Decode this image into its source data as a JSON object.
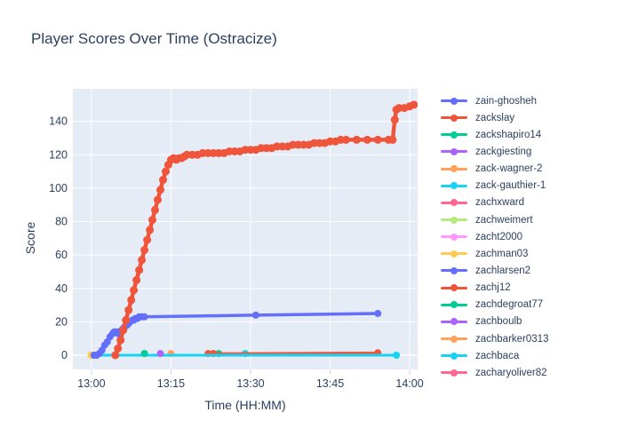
{
  "title": "Player Scores Over Time (Ostracize)",
  "chart_data": {
    "type": "line",
    "title": "Player Scores Over Time (Ostracize)",
    "xlabel": "Time (HH:MM)",
    "ylabel": "Score",
    "x_ticks": [
      {
        "label": "13:00",
        "minutes": 0
      },
      {
        "label": "13:15",
        "minutes": 15
      },
      {
        "label": "13:30",
        "minutes": 30
      },
      {
        "label": "13:45",
        "minutes": 45
      },
      {
        "label": "14:00",
        "minutes": 60
      }
    ],
    "y_ticks": [
      0,
      20,
      40,
      60,
      80,
      100,
      120,
      140
    ],
    "x_range_minutes": [
      -3.5,
      61.5
    ],
    "y_range": [
      -8.5,
      159.5
    ],
    "grid": true,
    "legend_position": "right",
    "colors": {
      "plot_bg": "#e5ecf6",
      "grid": "#ffffff",
      "text": "#2a3f5f",
      "tick_mark": "#ccd5e6"
    },
    "draw_order": [
      16,
      15,
      14,
      13,
      12,
      11,
      10,
      9,
      8,
      7,
      6,
      5,
      4,
      3,
      2,
      0,
      1
    ],
    "series": [
      {
        "name": "zain-ghosheh",
        "color": "#636efa",
        "line_width": 3.5,
        "marker_r": 4,
        "points": [
          [
            0.5,
            0
          ],
          [
            1,
            0
          ],
          [
            1.5,
            1
          ],
          [
            2,
            3
          ],
          [
            2.5,
            6
          ],
          [
            3,
            8
          ],
          [
            3.5,
            11
          ],
          [
            4,
            13
          ],
          [
            4.3,
            14
          ],
          [
            4.7,
            14
          ],
          [
            5,
            13
          ],
          [
            5.3,
            14
          ],
          [
            5.7,
            15
          ],
          [
            6,
            16
          ],
          [
            6.3,
            17
          ],
          [
            6.7,
            18
          ],
          [
            7,
            19
          ],
          [
            7.3,
            20
          ],
          [
            7.7,
            21
          ],
          [
            8,
            21
          ],
          [
            8.3,
            22
          ],
          [
            8.7,
            22
          ],
          [
            9,
            23
          ],
          [
            9.5,
            23
          ],
          [
            10,
            23
          ],
          [
            31,
            24
          ],
          [
            54,
            25
          ]
        ]
      },
      {
        "name": "zackslay",
        "color": "#ef553b",
        "line_width": 4.5,
        "marker_r": 4.5,
        "points": [
          [
            4.5,
            0
          ],
          [
            5,
            4
          ],
          [
            5.5,
            9
          ],
          [
            6,
            15
          ],
          [
            6.5,
            21
          ],
          [
            7,
            27
          ],
          [
            7.5,
            33
          ],
          [
            8,
            39
          ],
          [
            8.5,
            45
          ],
          [
            9,
            51
          ],
          [
            9.5,
            57
          ],
          [
            10,
            63
          ],
          [
            10.5,
            69
          ],
          [
            11,
            75
          ],
          [
            11.5,
            81
          ],
          [
            12,
            87
          ],
          [
            12.5,
            93
          ],
          [
            13,
            99
          ],
          [
            13.5,
            105
          ],
          [
            14,
            110
          ],
          [
            14.5,
            114
          ],
          [
            15,
            117
          ],
          [
            15.5,
            118
          ],
          [
            16,
            117
          ],
          [
            16.5,
            118
          ],
          [
            17,
            118
          ],
          [
            17.5,
            119
          ],
          [
            18,
            120
          ],
          [
            19,
            120
          ],
          [
            20,
            120
          ],
          [
            21,
            121
          ],
          [
            22,
            121
          ],
          [
            23,
            121
          ],
          [
            24,
            121
          ],
          [
            25,
            121
          ],
          [
            26,
            122
          ],
          [
            27,
            122
          ],
          [
            28,
            122
          ],
          [
            29,
            123
          ],
          [
            30,
            123
          ],
          [
            31,
            123
          ],
          [
            32,
            124
          ],
          [
            33,
            124
          ],
          [
            34,
            124
          ],
          [
            35,
            125
          ],
          [
            36,
            125
          ],
          [
            37,
            125
          ],
          [
            38,
            126
          ],
          [
            39,
            126
          ],
          [
            40,
            126
          ],
          [
            41,
            126
          ],
          [
            42,
            127
          ],
          [
            43,
            127
          ],
          [
            44,
            127
          ],
          [
            45,
            128
          ],
          [
            46,
            128
          ],
          [
            47,
            129
          ],
          [
            48,
            129
          ],
          [
            50,
            129
          ],
          [
            52,
            129
          ],
          [
            54,
            129
          ],
          [
            56,
            129
          ],
          [
            56.8,
            129
          ],
          [
            57.2,
            141
          ],
          [
            57.5,
            147
          ],
          [
            58,
            148
          ],
          [
            59,
            148
          ],
          [
            60,
            149
          ],
          [
            60.8,
            150
          ]
        ]
      },
      {
        "name": "zackshapiro14",
        "color": "#00cc96",
        "line_width": 0,
        "marker_r": 4,
        "points": [
          [
            10,
            1
          ]
        ]
      },
      {
        "name": "zackgiesting",
        "color": "#ab63fa",
        "line_width": 0,
        "marker_r": 4,
        "points": [
          [
            13,
            1
          ]
        ]
      },
      {
        "name": "zack-wagner-2",
        "color": "#ffa15a",
        "line_width": 0,
        "marker_r": 3.5,
        "points": [
          [
            1,
            0
          ]
        ]
      },
      {
        "name": "zack-gauthier-1",
        "color": "#19d3f3",
        "line_width": 3,
        "marker_r": 4,
        "points": [
          [
            0.5,
            0
          ],
          [
            57.5,
            0
          ]
        ]
      },
      {
        "name": "zachxward",
        "color": "#ff6692",
        "line_width": 0,
        "marker_r": 3.5,
        "points": [
          [
            1,
            0
          ]
        ]
      },
      {
        "name": "zachweimert",
        "color": "#b6e880",
        "line_width": 0,
        "marker_r": 3.5,
        "points": [
          [
            1,
            0
          ]
        ]
      },
      {
        "name": "zacht2000",
        "color": "#ff97ff",
        "line_width": 0,
        "marker_r": 3.5,
        "points": [
          [
            1,
            0
          ]
        ]
      },
      {
        "name": "zachman03",
        "color": "#fecb52",
        "line_width": 0,
        "marker_r": 4.5,
        "points": [
          [
            0,
            0
          ]
        ]
      },
      {
        "name": "zachlarsen2",
        "color": "#636efa",
        "line_width": 0,
        "marker_r": 3.5,
        "points": [
          [
            0.5,
            0
          ]
        ]
      },
      {
        "name": "zachj12",
        "color": "#ef553b",
        "line_width": 2.5,
        "marker_r": 4,
        "points": [
          [
            22,
            1
          ],
          [
            23,
            1
          ],
          [
            54,
            1.5
          ]
        ]
      },
      {
        "name": "zachdegroat77",
        "color": "#00cc96",
        "line_width": 0,
        "marker_r": 4,
        "points": [
          [
            24,
            1
          ]
        ]
      },
      {
        "name": "zachboulb",
        "color": "#ab63fa",
        "line_width": 0,
        "marker_r": 3.5,
        "points": [
          [
            13,
            1
          ]
        ]
      },
      {
        "name": "zachbarker0313",
        "color": "#ffa15a",
        "line_width": 0,
        "marker_r": 4,
        "points": [
          [
            15,
            1
          ]
        ]
      },
      {
        "name": "zachbaca",
        "color": "#19d3f3",
        "line_width": 0,
        "marker_r": 4,
        "points": [
          [
            29,
            1
          ]
        ]
      },
      {
        "name": "zacharyoliver82",
        "color": "#ff6692",
        "line_width": 0,
        "marker_r": 3.5,
        "points": [
          [
            1,
            0
          ]
        ]
      }
    ]
  }
}
